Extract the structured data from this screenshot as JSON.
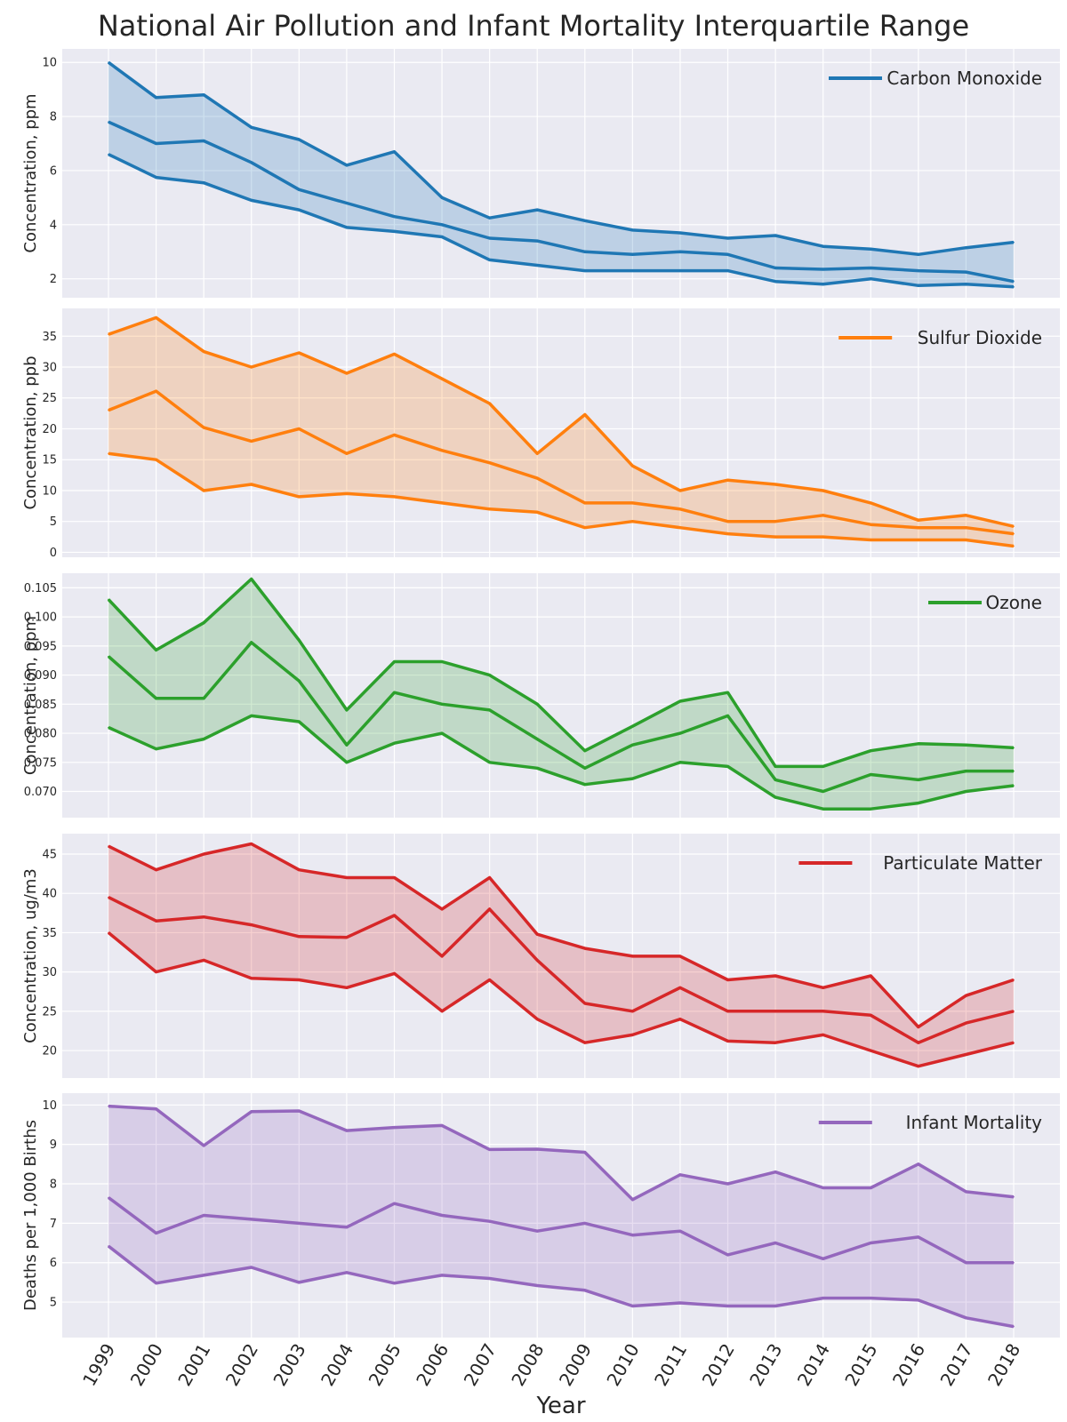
{
  "figure": {
    "title": "National Air Pollution and Infant Mortality Interquartile Range",
    "xlabel": "Year"
  },
  "chart_data": [
    {
      "type": "area",
      "legend": "Carbon Monoxide",
      "legend_position": "top-right",
      "color": "#1f77b4",
      "ylabel": "Concentration, ppm",
      "ylim": [
        1.3,
        10.5
      ],
      "yticks": [
        2,
        4,
        6,
        8,
        10
      ],
      "ytick_labels": [
        "2",
        "4",
        "6",
        "8",
        "10"
      ],
      "x": [
        "1999",
        "2000",
        "2001",
        "2002",
        "2003",
        "2004",
        "2005",
        "2006",
        "2007",
        "2008",
        "2009",
        "2010",
        "2011",
        "2012",
        "2013",
        "2014",
        "2015",
        "2016",
        "2017",
        "2018"
      ],
      "upper": [
        10.0,
        8.7,
        8.8,
        7.6,
        7.15,
        6.2,
        6.7,
        5.0,
        4.25,
        4.55,
        4.15,
        3.8,
        3.7,
        3.5,
        3.6,
        3.2,
        3.1,
        2.9,
        3.15,
        3.35
      ],
      "median": [
        7.8,
        7.0,
        7.1,
        6.3,
        5.3,
        4.8,
        4.3,
        4.0,
        3.5,
        3.4,
        3.0,
        2.9,
        3.0,
        2.9,
        2.4,
        2.35,
        2.4,
        2.3,
        2.25,
        1.9
      ],
      "lower": [
        6.6,
        5.75,
        5.55,
        4.9,
        4.55,
        3.9,
        3.75,
        3.55,
        2.7,
        2.5,
        2.3,
        2.3,
        2.3,
        2.3,
        1.9,
        1.8,
        2.0,
        1.75,
        1.8,
        1.7
      ]
    },
    {
      "type": "area",
      "legend": "Sulfur Dioxide",
      "legend_position": "top-right",
      "color": "#ff7f0e",
      "ylabel": "Concentration, ppb",
      "ylim": [
        -0.8,
        39.5
      ],
      "yticks": [
        0,
        5,
        10,
        15,
        20,
        25,
        30,
        35
      ],
      "ytick_labels": [
        "0",
        "5",
        "10",
        "15",
        "20",
        "25",
        "30",
        "35"
      ],
      "x": [
        "1999",
        "2000",
        "2001",
        "2002",
        "2003",
        "2004",
        "2005",
        "2006",
        "2007",
        "2008",
        "2009",
        "2010",
        "2011",
        "2012",
        "2013",
        "2014",
        "2015",
        "2016",
        "2017",
        "2018"
      ],
      "upper": [
        35.3,
        38.0,
        32.5,
        30.0,
        32.3,
        29.0,
        32.1,
        28.1,
        24.1,
        16.0,
        22.3,
        14.0,
        10.0,
        11.7,
        11.0,
        10.0,
        8.0,
        5.2,
        6.0,
        4.2
      ],
      "median": [
        23.0,
        26.1,
        20.2,
        18.0,
        20.0,
        16.0,
        19.0,
        16.5,
        14.5,
        12.0,
        8.0,
        8.0,
        7.0,
        5.0,
        5.0,
        6.0,
        4.5,
        4.0,
        4.0,
        3.0
      ],
      "lower": [
        16.0,
        15.0,
        10.0,
        11.0,
        9.0,
        9.5,
        9.0,
        8.0,
        7.0,
        6.5,
        4.0,
        5.0,
        4.0,
        3.0,
        2.5,
        2.5,
        2.0,
        2.0,
        2.0,
        1.0
      ]
    },
    {
      "type": "area",
      "legend": "Ozone",
      "legend_position": "top-right",
      "color": "#2ca02c",
      "ylabel": "Concentration, ppm",
      "ylim": [
        0.0655,
        0.1075
      ],
      "yticks": [
        0.07,
        0.075,
        0.08,
        0.085,
        0.09,
        0.095,
        0.1,
        0.105
      ],
      "ytick_labels": [
        "0.070",
        "0.075",
        "0.080",
        "0.085",
        "0.090",
        "0.095",
        "0.100",
        "0.105"
      ],
      "x": [
        "1999",
        "2000",
        "2001",
        "2002",
        "2003",
        "2004",
        "2005",
        "2006",
        "2007",
        "2008",
        "2009",
        "2010",
        "2011",
        "2012",
        "2013",
        "2014",
        "2015",
        "2016",
        "2017",
        "2018"
      ],
      "upper": [
        0.103,
        0.0943,
        0.099,
        0.1065,
        0.096,
        0.084,
        0.0923,
        0.0923,
        0.09,
        0.085,
        0.077,
        0.0812,
        0.0855,
        0.087,
        0.0743,
        0.0743,
        0.077,
        0.0782,
        0.078,
        0.0775
      ],
      "median": [
        0.0932,
        0.086,
        0.086,
        0.0956,
        0.089,
        0.078,
        0.087,
        0.085,
        0.084,
        0.079,
        0.074,
        0.078,
        0.08,
        0.083,
        0.072,
        0.07,
        0.0729,
        0.072,
        0.0735,
        0.0735
      ],
      "lower": [
        0.081,
        0.0773,
        0.079,
        0.083,
        0.082,
        0.075,
        0.0783,
        0.08,
        0.075,
        0.074,
        0.0712,
        0.0722,
        0.075,
        0.0743,
        0.069,
        0.067,
        0.067,
        0.068,
        0.07,
        0.071
      ]
    },
    {
      "type": "area",
      "legend": "Particulate Matter",
      "legend_position": "top-right",
      "color": "#d62728",
      "ylabel": "Concentration, ug/m3",
      "ylim": [
        16.5,
        47.6
      ],
      "yticks": [
        20,
        25,
        30,
        35,
        40,
        45
      ],
      "ytick_labels": [
        "20",
        "25",
        "30",
        "35",
        "40",
        "45"
      ],
      "x": [
        "1999",
        "2000",
        "2001",
        "2002",
        "2003",
        "2004",
        "2005",
        "2006",
        "2007",
        "2008",
        "2009",
        "2010",
        "2011",
        "2012",
        "2013",
        "2014",
        "2015",
        "2016",
        "2017",
        "2018"
      ],
      "upper": [
        46.0,
        43.0,
        45.0,
        46.3,
        43.0,
        42.0,
        42.0,
        38.0,
        42.0,
        34.8,
        33.0,
        32.0,
        32.0,
        29.0,
        29.5,
        28.0,
        29.5,
        23.0,
        27.0,
        29.0
      ],
      "median": [
        39.5,
        36.5,
        37.0,
        36.0,
        34.5,
        34.4,
        37.2,
        32.0,
        38.0,
        31.5,
        26.0,
        25.0,
        28.0,
        25.0,
        25.0,
        25.0,
        24.5,
        21.0,
        23.5,
        25.0
      ],
      "lower": [
        35.0,
        30.0,
        31.5,
        29.2,
        29.0,
        28.0,
        29.8,
        25.0,
        29.0,
        24.0,
        21.0,
        22.0,
        24.0,
        21.2,
        21.0,
        22.0,
        20.0,
        18.0,
        19.5,
        21.0
      ]
    },
    {
      "type": "area",
      "legend": "Infant Mortality",
      "legend_position": "top-right",
      "color": "#9467bd",
      "ylabel": "Deaths per 1,000 Births",
      "ylim": [
        4.1,
        10.3
      ],
      "yticks": [
        5,
        6,
        7,
        8,
        9,
        10
      ],
      "ytick_labels": [
        "5",
        "6",
        "7",
        "8",
        "9",
        "10"
      ],
      "x": [
        "1999",
        "2000",
        "2001",
        "2002",
        "2003",
        "2004",
        "2005",
        "2006",
        "2007",
        "2008",
        "2009",
        "2010",
        "2011",
        "2012",
        "2013",
        "2014",
        "2015",
        "2016",
        "2017",
        "2018"
      ],
      "upper": [
        9.97,
        9.9,
        8.97,
        9.83,
        9.85,
        9.35,
        9.43,
        9.48,
        8.87,
        8.88,
        8.8,
        7.6,
        8.23,
        8.0,
        8.3,
        7.9,
        7.9,
        8.5,
        7.8,
        7.67
      ],
      "median": [
        7.65,
        6.75,
        7.2,
        7.1,
        7.0,
        6.9,
        7.5,
        7.2,
        7.05,
        6.8,
        7.0,
        6.7,
        6.8,
        6.2,
        6.5,
        6.1,
        6.5,
        6.65,
        6.0,
        6.0
      ],
      "lower": [
        6.42,
        5.48,
        5.68,
        5.88,
        5.5,
        5.75,
        5.48,
        5.68,
        5.6,
        5.42,
        5.3,
        4.9,
        4.98,
        4.9,
        4.9,
        5.1,
        5.1,
        5.05,
        4.6,
        4.38
      ]
    }
  ]
}
